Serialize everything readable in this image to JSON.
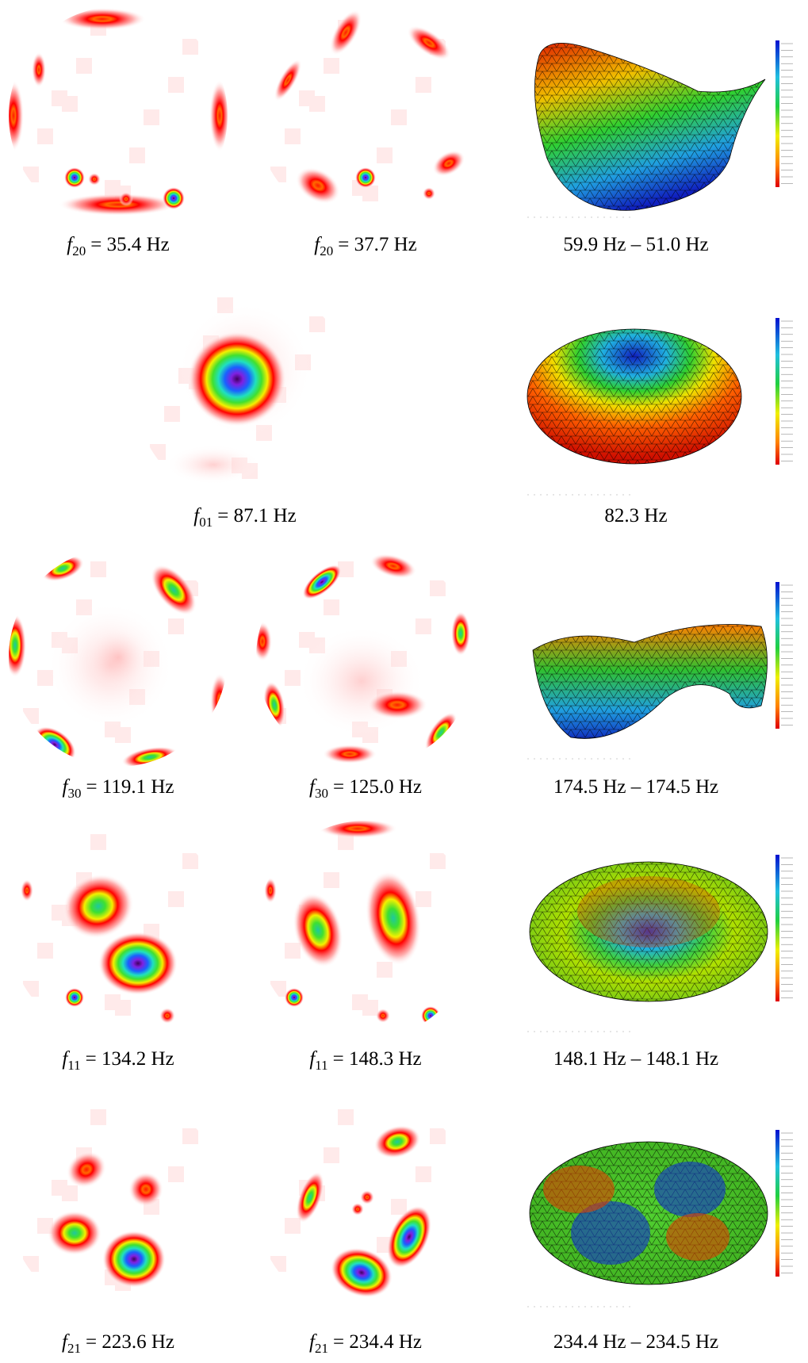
{
  "rows": [
    {
      "measured": [
        {
          "symbol": "f",
          "subscript": "20",
          "value": "= 35.4 Hz"
        },
        {
          "symbol": "f",
          "subscript": "20",
          "value": "= 37.7 Hz"
        }
      ],
      "simulated": "59.9 Hz – 51.0 Hz"
    },
    {
      "measured": [
        {
          "symbol": "f",
          "subscript": "01",
          "value": "= 87.1 Hz"
        }
      ],
      "simulated": "82.3 Hz"
    },
    {
      "measured": [
        {
          "symbol": "f",
          "subscript": "30",
          "value": "= 119.1 Hz"
        },
        {
          "symbol": "f",
          "subscript": "30",
          "value": "= 125.0 Hz"
        }
      ],
      "simulated": "174.5 Hz – 174.5 Hz"
    },
    {
      "measured": [
        {
          "symbol": "f",
          "subscript": "11",
          "value": "= 134.2 Hz"
        },
        {
          "symbol": "f",
          "subscript": "11",
          "value": "= 148.3 Hz"
        }
      ],
      "simulated": "148.1 Hz – 148.1 Hz"
    },
    {
      "measured": [
        {
          "symbol": "f",
          "subscript": "21",
          "value": "= 223.6 Hz"
        },
        {
          "symbol": "f",
          "subscript": "21",
          "value": "= 234.4 Hz"
        }
      ],
      "simulated": "234.4 Hz – 234.5 Hz"
    }
  ]
}
